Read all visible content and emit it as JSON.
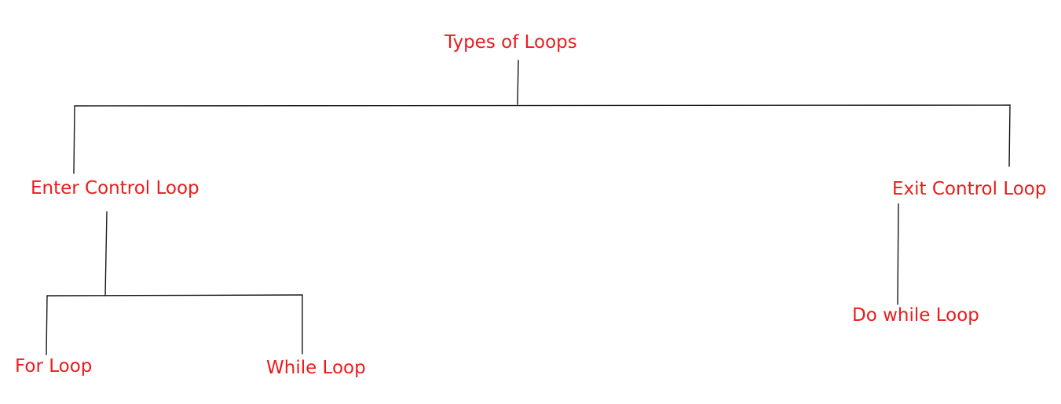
{
  "diagram": {
    "root": {
      "label": "Types of Loops"
    },
    "enter_control": {
      "label": "Enter Control Loop",
      "children": [
        {
          "label": "For Loop"
        },
        {
          "label": "While Loop"
        }
      ]
    },
    "exit_control": {
      "label": "Exit Control Loop",
      "children": [
        {
          "label": "Do while Loop"
        }
      ]
    }
  },
  "colors": {
    "label_text": "#ea1c1c",
    "connector": "#1a1a1a",
    "background": "#ffffff"
  }
}
